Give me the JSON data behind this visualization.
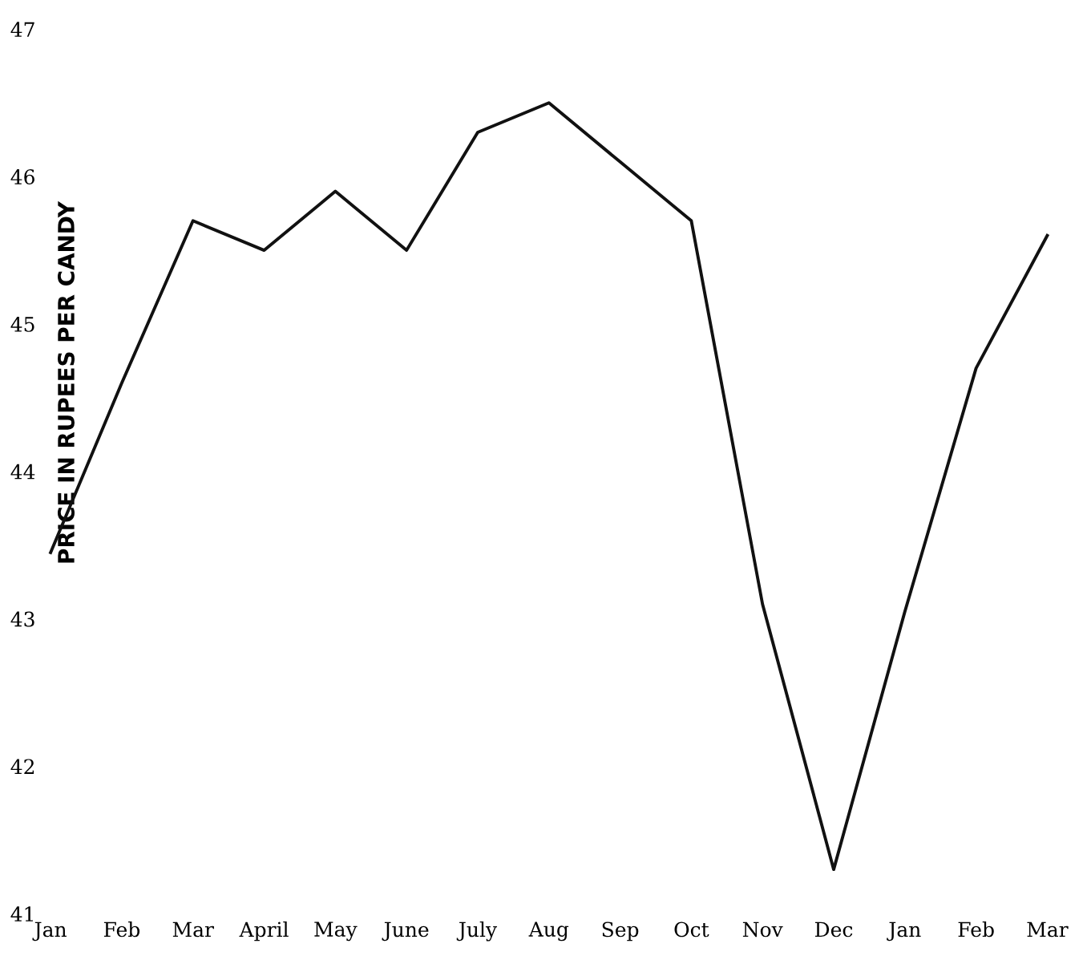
{
  "chart_data": {
    "type": "line",
    "ylabel": "PRICE IN RUPEES PER CANDY",
    "categories": [
      "Jan",
      "Feb",
      "Mar",
      "April",
      "May",
      "June",
      "July",
      "Aug",
      "Sep",
      "Oct",
      "Nov",
      "Dec",
      "Jan",
      "Feb",
      "Mar"
    ],
    "series": [
      {
        "color": "#111111",
        "values": [
          43.45,
          44.6,
          45.7,
          45.5,
          45.9,
          45.5,
          46.3,
          46.5,
          46.1,
          45.7,
          43.1,
          41.3,
          43.05,
          44.7,
          45.6
        ]
      }
    ],
    "ylim": [
      41,
      47
    ],
    "yticks": [
      41,
      42,
      43,
      44,
      45,
      46,
      47
    ],
    "grid": false,
    "legend": false,
    "marker": "none",
    "line_style": "solid"
  }
}
